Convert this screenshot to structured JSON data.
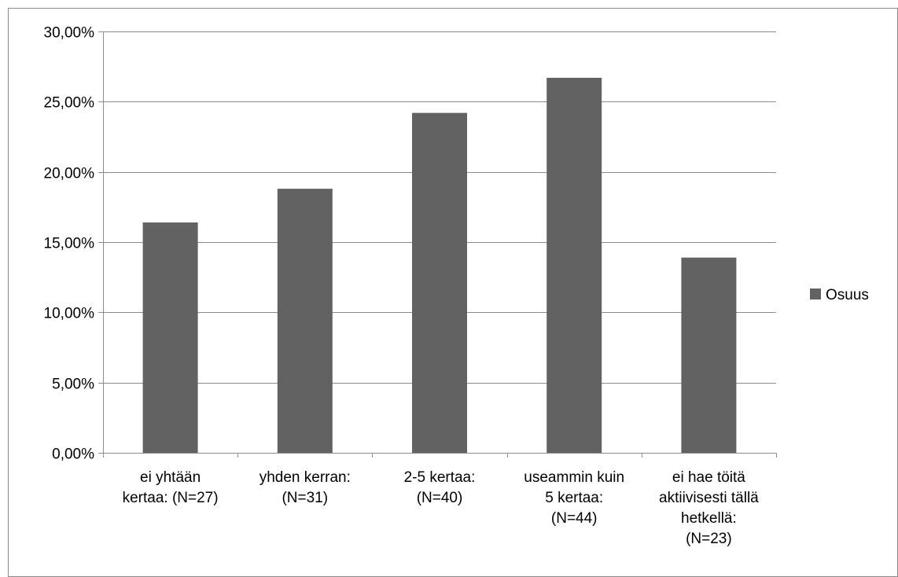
{
  "chart_data": {
    "type": "bar",
    "categories": [
      [
        "ei yhtään",
        "kertaa: (N=27)"
      ],
      [
        "yhden kerran:",
        "(N=31)"
      ],
      [
        "2-5 kertaa:",
        "(N=40)"
      ],
      [
        "useammin kuin",
        "5 kertaa:",
        "(N=44)"
      ],
      [
        "ei hae töitä",
        "aktiivisesti tällä",
        "hetkellä:",
        "(N=23)"
      ]
    ],
    "series": [
      {
        "name": "Osuus",
        "values": [
          16.4,
          18.8,
          24.2,
          26.7,
          13.9
        ],
        "color": "#626262"
      }
    ],
    "ylim": [
      0,
      30
    ],
    "yticks": [
      {
        "value": 0,
        "label": "0,00%"
      },
      {
        "value": 5,
        "label": "5,00%"
      },
      {
        "value": 10,
        "label": "10,00%"
      },
      {
        "value": 15,
        "label": "15,00%"
      },
      {
        "value": 20,
        "label": "20,00%"
      },
      {
        "value": 25,
        "label": "25,00%"
      },
      {
        "value": 30,
        "label": "30,00%"
      }
    ],
    "grid": true,
    "legend": {
      "position": "right",
      "label": "Osuus"
    }
  }
}
